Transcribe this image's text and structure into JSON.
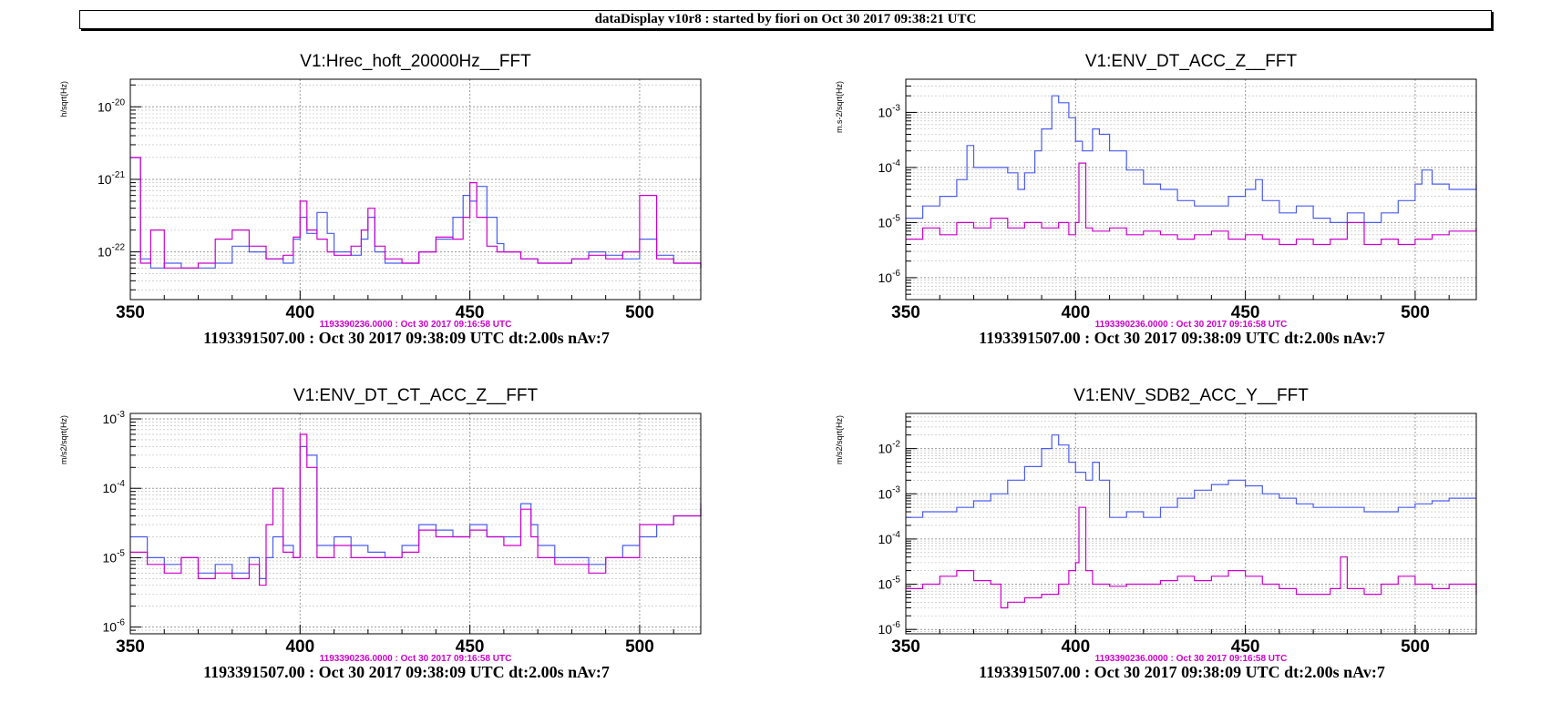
{
  "window": {
    "header": "dataDisplay v10r8 : started by fiori on Oct 30 2017 09:38:21 UTC"
  },
  "colors": {
    "current": "#4a5cf0",
    "reference": "#cc00cc",
    "grid": "#9a9a9a"
  },
  "chart_data": [
    {
      "type": "line",
      "title": "V1:Hrec_hoft_20000Hz__FFT",
      "ylabel": "h/sqrt(Hz)",
      "xunit": "Hz",
      "xlim": [
        350,
        518
      ],
      "ylim": [
        2.2e-23,
        2.4e-20
      ],
      "yscale": "log",
      "grid": true,
      "x_ticks": [
        "350",
        "400",
        "450",
        "500"
      ],
      "y_ticks": [
        {
          "base": "10",
          "exp": "-20"
        },
        {
          "base": "10",
          "exp": "-21"
        },
        {
          "base": "10",
          "exp": "-22"
        }
      ],
      "reference_label": "1193390236.0000 : Oct 30 2017 09:16:58 UTC",
      "footer": "1193391507.00 : Oct 30 2017 09:38:09 UTC dt:2.00s nAv:7",
      "series": [
        {
          "x": [
            350,
            353,
            356,
            360,
            365,
            370,
            375,
            380,
            385,
            390,
            395,
            398,
            400,
            402,
            405,
            408,
            410,
            415,
            418,
            420,
            422,
            425,
            430,
            435,
            440,
            445,
            448,
            450,
            452,
            455,
            458,
            460,
            465,
            470,
            475,
            480,
            485,
            490,
            495,
            500,
            505,
            510,
            518
          ],
          "y": [
            2e-21,
            8e-23,
            6e-23,
            7e-23,
            6e-23,
            6e-23,
            7e-23,
            1.2e-22,
            1e-22,
            8e-23,
            7e-23,
            1.5e-22,
            3e-22,
            1.8e-22,
            3.5e-22,
            1.8e-22,
            1e-22,
            9e-23,
            1.5e-22,
            3e-22,
            1e-22,
            7e-23,
            7e-23,
            1e-22,
            1.5e-22,
            3e-22,
            6e-22,
            5e-22,
            8e-22,
            3e-22,
            1.3e-22,
            1e-22,
            8e-23,
            7e-23,
            7e-23,
            8e-23,
            1e-22,
            9e-23,
            8e-23,
            1.5e-22,
            9e-23,
            7e-23,
            6e-23
          ]
        },
        {
          "x": [
            350,
            353,
            356,
            360,
            365,
            370,
            375,
            380,
            385,
            390,
            395,
            398,
            400,
            402,
            405,
            408,
            410,
            415,
            418,
            420,
            422,
            425,
            430,
            435,
            440,
            445,
            448,
            450,
            452,
            455,
            458,
            460,
            465,
            470,
            475,
            480,
            485,
            490,
            495,
            500,
            505,
            510,
            518
          ],
          "y": [
            2e-21,
            7e-23,
            2e-22,
            6e-23,
            6e-23,
            7e-23,
            1.5e-22,
            2e-22,
            1.2e-22,
            8e-23,
            9e-23,
            1.6e-22,
            5e-22,
            2e-22,
            1.5e-22,
            1e-22,
            9e-23,
            1.2e-22,
            2e-22,
            4e-22,
            1.2e-22,
            8e-23,
            7e-23,
            1e-22,
            1.6e-22,
            1.5e-22,
            3e-22,
            9e-22,
            3e-22,
            1.2e-22,
            1e-22,
            1e-22,
            8e-23,
            7e-23,
            7e-23,
            8e-23,
            9e-23,
            8e-23,
            1e-22,
            6e-22,
            8e-23,
            7e-23,
            6e-23
          ]
        }
      ]
    },
    {
      "type": "line",
      "title": "V1:ENV_DT_ACC_Z__FFT",
      "ylabel": "m.s-2/sqrt(Hz)",
      "xunit": "Hz",
      "xlim": [
        350,
        518
      ],
      "ylim": [
        4e-07,
        0.004
      ],
      "yscale": "log",
      "grid": true,
      "x_ticks": [
        "350",
        "400",
        "450",
        "500"
      ],
      "y_ticks": [
        {
          "base": "10",
          "exp": "-3"
        },
        {
          "base": "10",
          "exp": "-4"
        },
        {
          "base": "10",
          "exp": "-5"
        },
        {
          "base": "10",
          "exp": "-6"
        }
      ],
      "reference_label": "1193390236.0000 : Oct 30 2017 09:16:58 UTC",
      "footer": "1193391507.00 : Oct 30 2017 09:38:09 UTC dt:2.00s nAv:7",
      "series": [
        {
          "x": [
            350,
            355,
            360,
            365,
            368,
            370,
            375,
            380,
            383,
            385,
            388,
            390,
            393,
            395,
            398,
            400,
            402,
            405,
            407,
            410,
            415,
            420,
            425,
            430,
            435,
            440,
            445,
            450,
            453,
            455,
            460,
            465,
            470,
            475,
            480,
            485,
            490,
            495,
            500,
            502,
            505,
            510,
            518
          ],
          "y": [
            1.2e-05,
            2e-05,
            3e-05,
            6e-05,
            0.00025,
            0.0001,
            0.0001,
            8e-05,
            4e-05,
            8e-05,
            0.0002,
            0.0005,
            0.002,
            0.0015,
            0.0008,
            0.0003,
            0.0002,
            0.0005,
            0.0004,
            0.0002,
            9e-05,
            5e-05,
            4e-05,
            2.5e-05,
            2e-05,
            2e-05,
            3e-05,
            4e-05,
            6e-05,
            2.5e-05,
            1.5e-05,
            2e-05,
            1.2e-05,
            1e-05,
            1.5e-05,
            1e-05,
            1.5e-05,
            2.5e-05,
            5e-05,
            9e-05,
            5e-05,
            4e-05,
            5e-05
          ]
        },
        {
          "x": [
            350,
            355,
            360,
            365,
            370,
            375,
            380,
            385,
            390,
            395,
            398,
            400,
            401,
            403,
            405,
            410,
            415,
            420,
            425,
            430,
            435,
            440,
            445,
            450,
            455,
            460,
            465,
            470,
            475,
            480,
            485,
            490,
            495,
            500,
            505,
            510,
            518
          ],
          "y": [
            5e-06,
            8e-06,
            6e-06,
            1e-05,
            8e-06,
            1.2e-05,
            8e-06,
            1e-05,
            8e-06,
            1e-05,
            6e-06,
            1e-05,
            0.00012,
            8e-06,
            7e-06,
            8e-06,
            6e-06,
            7e-06,
            6e-06,
            5e-06,
            6e-06,
            7e-06,
            5e-06,
            6e-06,
            5e-06,
            4e-06,
            5e-06,
            4e-06,
            5e-06,
            1e-05,
            4e-06,
            5e-06,
            4e-06,
            5e-06,
            6e-06,
            7e-06,
            8e-06
          ]
        }
      ]
    },
    {
      "type": "line",
      "title": "V1:ENV_DT_CT_ACC_Z__FFT",
      "ylabel": "m/s2/sqrt(Hz)",
      "xunit": "Hz",
      "xlim": [
        350,
        518
      ],
      "ylim": [
        8e-07,
        0.0012
      ],
      "yscale": "log",
      "grid": true,
      "x_ticks": [
        "350",
        "400",
        "450",
        "500"
      ],
      "y_ticks": [
        {
          "base": "10",
          "exp": "-3"
        },
        {
          "base": "10",
          "exp": "-4"
        },
        {
          "base": "10",
          "exp": "-5"
        },
        {
          "base": "10",
          "exp": "-6"
        }
      ],
      "reference_label": "1193390236.0000 : Oct 30 2017 09:16:58 UTC",
      "footer": "1193391507.00 : Oct 30 2017 09:38:09 UTC dt:2.00s nAv:7",
      "series": [
        {
          "x": [
            350,
            355,
            360,
            365,
            370,
            375,
            380,
            385,
            388,
            390,
            392,
            395,
            398,
            400,
            402,
            405,
            410,
            415,
            420,
            425,
            430,
            435,
            440,
            445,
            450,
            455,
            460,
            465,
            468,
            470,
            475,
            480,
            485,
            490,
            495,
            500,
            505,
            510,
            518
          ],
          "y": [
            2e-05,
            1e-05,
            8e-06,
            1e-05,
            6e-06,
            8e-06,
            6e-06,
            1e-05,
            5e-06,
            1e-05,
            2e-05,
            1.5e-05,
            1e-05,
            0.0004,
            0.0003,
            1.5e-05,
            2e-05,
            1.5e-05,
            1.2e-05,
            1e-05,
            1.5e-05,
            3e-05,
            2.5e-05,
            2e-05,
            3e-05,
            2e-05,
            2e-05,
            6e-05,
            3e-05,
            1.5e-05,
            1e-05,
            1e-05,
            8e-06,
            1e-05,
            1.5e-05,
            2e-05,
            3e-05,
            4e-05,
            5e-05
          ]
        },
        {
          "x": [
            350,
            355,
            360,
            365,
            370,
            375,
            380,
            385,
            388,
            390,
            392,
            395,
            398,
            400,
            402,
            405,
            410,
            415,
            420,
            425,
            430,
            435,
            440,
            445,
            450,
            455,
            460,
            465,
            468,
            470,
            475,
            480,
            485,
            490,
            495,
            500,
            505,
            510,
            518
          ],
          "y": [
            1.2e-05,
            8e-06,
            6e-06,
            1e-05,
            5e-06,
            6e-06,
            5e-06,
            8e-06,
            4e-06,
            3e-05,
            0.0001,
            1.2e-05,
            1e-05,
            0.0006,
            0.0002,
            1e-05,
            1.5e-05,
            1e-05,
            1e-05,
            1e-05,
            1.2e-05,
            2.5e-05,
            2e-05,
            2e-05,
            2.5e-05,
            2e-05,
            1.5e-05,
            5e-05,
            2e-05,
            1e-05,
            8e-06,
            8e-06,
            6e-06,
            1e-05,
            1e-05,
            3e-05,
            3e-05,
            4e-05,
            6e-05
          ]
        }
      ]
    },
    {
      "type": "line",
      "title": "V1:ENV_SDB2_ACC_Y__FFT",
      "ylabel": "m/s2/sqrt(Hz)",
      "xunit": "Hz",
      "xlim": [
        350,
        518
      ],
      "ylim": [
        8e-07,
        0.06
      ],
      "yscale": "log",
      "grid": true,
      "x_ticks": [
        "350",
        "400",
        "450",
        "500"
      ],
      "y_ticks": [
        {
          "base": "10",
          "exp": "-2"
        },
        {
          "base": "10",
          "exp": "-3"
        },
        {
          "base": "10",
          "exp": "-4"
        },
        {
          "base": "10",
          "exp": "-5"
        },
        {
          "base": "10",
          "exp": "-6"
        }
      ],
      "reference_label": "1193390236.0000 : Oct 30 2017 09:16:58 UTC",
      "footer": "1193391507.00 : Oct 30 2017 09:38:09 UTC dt:2.00s nAv:7",
      "series": [
        {
          "x": [
            350,
            355,
            360,
            365,
            370,
            375,
            380,
            385,
            390,
            393,
            395,
            398,
            400,
            403,
            405,
            407,
            410,
            415,
            420,
            425,
            430,
            435,
            440,
            445,
            450,
            455,
            460,
            465,
            470,
            475,
            480,
            485,
            490,
            495,
            500,
            505,
            510,
            518
          ],
          "y": [
            0.0003,
            0.0004,
            0.0004,
            0.0005,
            0.0007,
            0.001,
            0.002,
            0.004,
            0.01,
            0.02,
            0.012,
            0.005,
            0.003,
            0.002,
            0.005,
            0.002,
            0.0003,
            0.0004,
            0.0003,
            0.0005,
            0.0008,
            0.0012,
            0.0016,
            0.002,
            0.0015,
            0.001,
            0.0008,
            0.0006,
            0.0005,
            0.0005,
            0.0005,
            0.0004,
            0.0004,
            0.0005,
            0.0006,
            0.0007,
            0.0008,
            0.0008
          ]
        },
        {
          "x": [
            350,
            355,
            360,
            365,
            370,
            375,
            378,
            380,
            385,
            390,
            395,
            398,
            400,
            401,
            403,
            405,
            410,
            415,
            420,
            425,
            430,
            435,
            440,
            445,
            450,
            455,
            460,
            465,
            470,
            475,
            478,
            480,
            485,
            490,
            495,
            500,
            505,
            510,
            518
          ],
          "y": [
            8e-06,
            1e-05,
            1.5e-05,
            2e-05,
            1.2e-05,
            1e-05,
            3e-06,
            4e-06,
            5e-06,
            6e-06,
            1e-05,
            2e-05,
            3e-05,
            0.0005,
            2e-05,
            1e-05,
            9e-06,
            1e-05,
            1e-05,
            1.2e-05,
            1.5e-05,
            1.2e-05,
            1.5e-05,
            2e-05,
            1.5e-05,
            1e-05,
            8e-06,
            6e-06,
            6e-06,
            8e-06,
            4e-05,
            8e-06,
            6e-06,
            1e-05,
            1.5e-05,
            1e-05,
            8e-06,
            1e-05,
            6e-06
          ]
        }
      ]
    }
  ]
}
